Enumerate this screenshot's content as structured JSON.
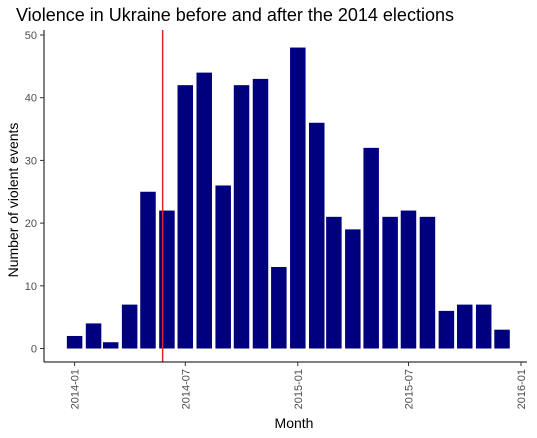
{
  "chart_data": {
    "type": "bar",
    "title": "Violence in Ukraine before and after the 2014 elections",
    "xlabel": "Month",
    "ylabel": "Number of violent events",
    "x_tick_labels": [
      "2014-01",
      "2014-07",
      "2015-01",
      "2015-07",
      "2016-01"
    ],
    "y_ticks": [
      0,
      10,
      20,
      30,
      40,
      50
    ],
    "ylim": [
      0,
      50
    ],
    "categories": [
      "2014-01",
      "2014-02",
      "2014-03",
      "2014-04",
      "2014-05",
      "2014-06",
      "2014-07",
      "2014-08",
      "2014-09",
      "2014-10",
      "2014-11",
      "2014-12",
      "2015-01",
      "2015-02",
      "2015-03",
      "2015-04",
      "2015-05",
      "2015-06",
      "2015-07",
      "2015-08",
      "2015-09",
      "2015-10",
      "2015-11",
      "2015-12"
    ],
    "values": [
      2,
      4,
      1,
      7,
      25,
      22,
      42,
      44,
      26,
      42,
      43,
      13,
      48,
      36,
      21,
      19,
      32,
      21,
      22,
      21,
      6,
      7,
      7,
      3
    ],
    "bar_color": "#00007F",
    "reference_line": {
      "x": "2014-05-25",
      "color": "#E0252B"
    },
    "grid": false
  }
}
